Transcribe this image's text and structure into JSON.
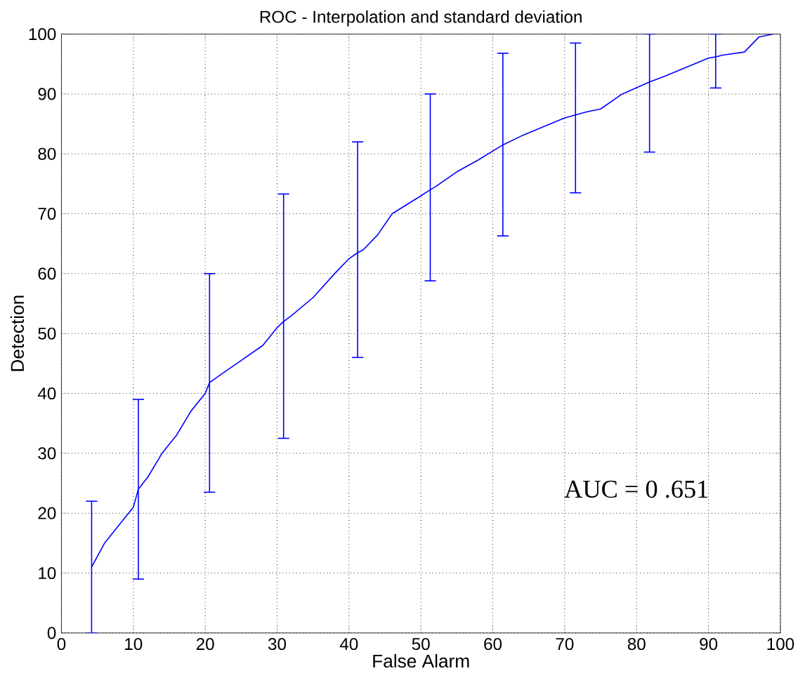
{
  "chart_data": {
    "type": "line",
    "title": "ROC - Interpolation and standard deviation",
    "xlabel": "False Alarm",
    "ylabel": "Detection",
    "xlim": [
      0,
      100
    ],
    "ylim": [
      0,
      100
    ],
    "xticks": [
      0,
      10,
      20,
      30,
      40,
      50,
      60,
      70,
      80,
      90,
      100
    ],
    "yticks": [
      0,
      10,
      20,
      30,
      40,
      50,
      60,
      70,
      80,
      90,
      100
    ],
    "grid": true,
    "annotations": [
      "AUC = 0 .651"
    ],
    "series": [
      {
        "type": "line",
        "color": "#0000ff",
        "x": [
          4.2,
          6,
          8,
          10,
          10.7,
          12,
          14,
          16,
          18,
          20,
          20.6,
          22,
          25,
          28,
          30,
          30.9,
          32,
          35,
          38,
          40,
          41.2,
          42,
          44,
          46,
          48,
          50,
          51.3,
          52,
          55,
          58,
          61.4,
          64,
          67,
          70,
          71.5,
          73,
          75,
          78,
          81.8,
          84,
          87,
          90,
          91,
          92,
          95,
          97,
          99
        ],
        "values": [
          11,
          15,
          18,
          21,
          24,
          26,
          30,
          33,
          37,
          40,
          41.8,
          43,
          45.5,
          48,
          51,
          52,
          53,
          56,
          60,
          62.5,
          63.5,
          64,
          66.5,
          70,
          71.5,
          73,
          74,
          74.5,
          77,
          79,
          81.5,
          83,
          84.5,
          86,
          86.5,
          87,
          87.5,
          90,
          92,
          93,
          94.5,
          96,
          96.2,
          96.5,
          97,
          99.5,
          100
        ],
        "errors": [
          [
            0,
            22
          ],
          null,
          null,
          null,
          [
            9,
            39
          ],
          null,
          null,
          null,
          null,
          null,
          [
            23.5,
            60
          ],
          null,
          null,
          null,
          null,
          [
            32.5,
            73.3
          ],
          null,
          null,
          null,
          null,
          [
            46,
            82
          ],
          null,
          null,
          null,
          null,
          null,
          [
            58.8,
            90
          ],
          null,
          null,
          null,
          [
            66.3,
            96.8
          ],
          null,
          null,
          null,
          [
            73.5,
            98.5
          ],
          null,
          null,
          null,
          [
            80.3,
            100
          ],
          null,
          null,
          null,
          [
            91,
            100
          ],
          null,
          null,
          null,
          null
        ]
      }
    ]
  }
}
